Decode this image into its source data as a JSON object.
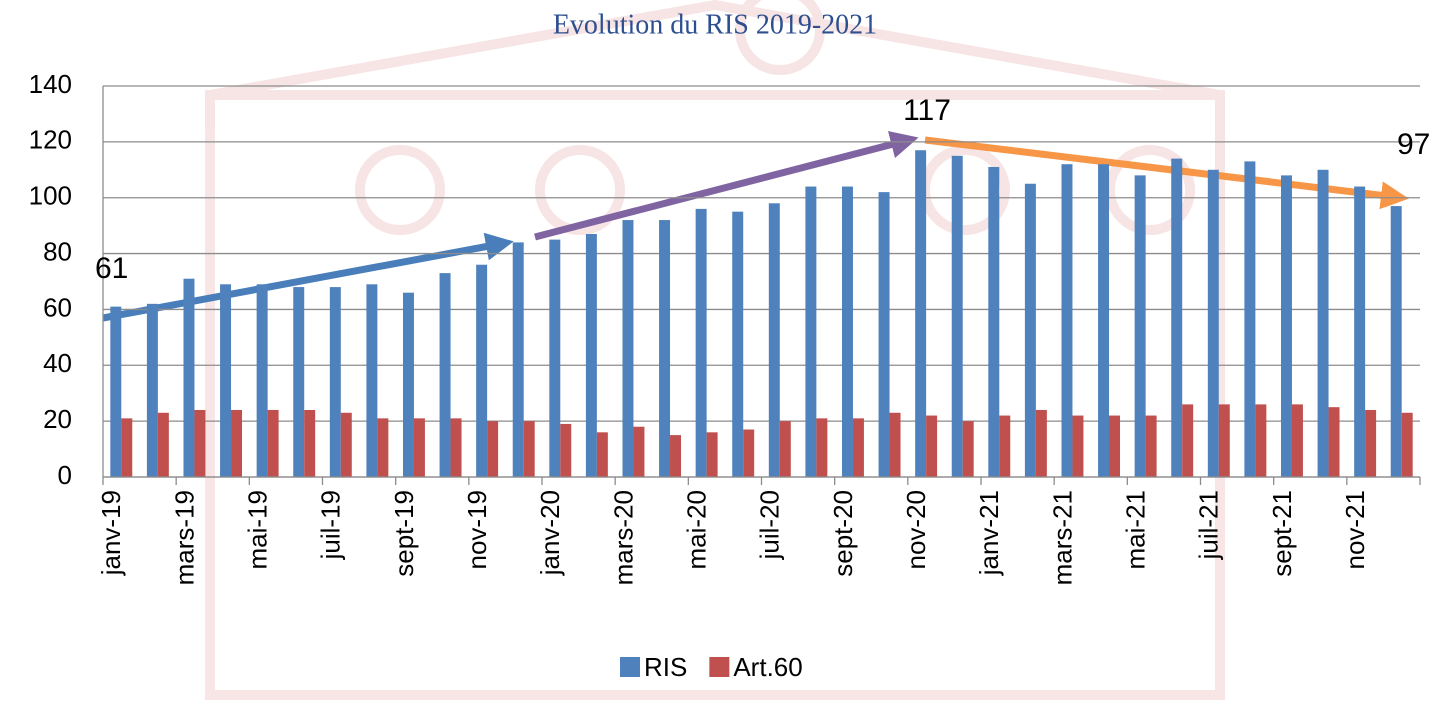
{
  "chart_data": {
    "type": "bar",
    "title": "Evolution du RIS 2019-2021",
    "categories": [
      "janv-19",
      null,
      "mars-19",
      null,
      "mai-19",
      null,
      "juil-19",
      null,
      "sept-19",
      null,
      "nov-19",
      null,
      "janv-20",
      null,
      "mars-20",
      null,
      "mai-20",
      null,
      "juil-20",
      null,
      "sept-20",
      null,
      "nov-20",
      null,
      "janv-21",
      null,
      "mars-21",
      null,
      "mai-21",
      null,
      "juil-21",
      null,
      "sept-21",
      null,
      "nov-21",
      null
    ],
    "series": [
      {
        "name": "RIS",
        "color": "#4f81bd",
        "values": [
          61,
          62,
          71,
          69,
          69,
          68,
          68,
          69,
          66,
          73,
          76,
          84,
          85,
          87,
          92,
          92,
          96,
          95,
          98,
          104,
          104,
          102,
          117,
          115,
          111,
          105,
          112,
          112,
          108,
          114,
          110,
          113,
          108,
          110,
          104,
          97
        ]
      },
      {
        "name": "Art.60",
        "color": "#c0504d",
        "values": [
          21,
          23,
          24,
          24,
          24,
          24,
          23,
          21,
          21,
          21,
          20,
          20,
          19,
          16,
          18,
          15,
          16,
          17,
          20,
          21,
          21,
          23,
          22,
          20,
          22,
          24,
          22,
          22,
          22,
          26,
          26,
          26,
          26,
          25,
          24,
          23
        ]
      }
    ],
    "ylim": [
      0,
      140
    ],
    "yticks": [
      0,
      20,
      40,
      60,
      80,
      100,
      120,
      140
    ],
    "grid": true,
    "annotations": [
      "61",
      "117",
      "97"
    ],
    "legend": "bottom"
  }
}
